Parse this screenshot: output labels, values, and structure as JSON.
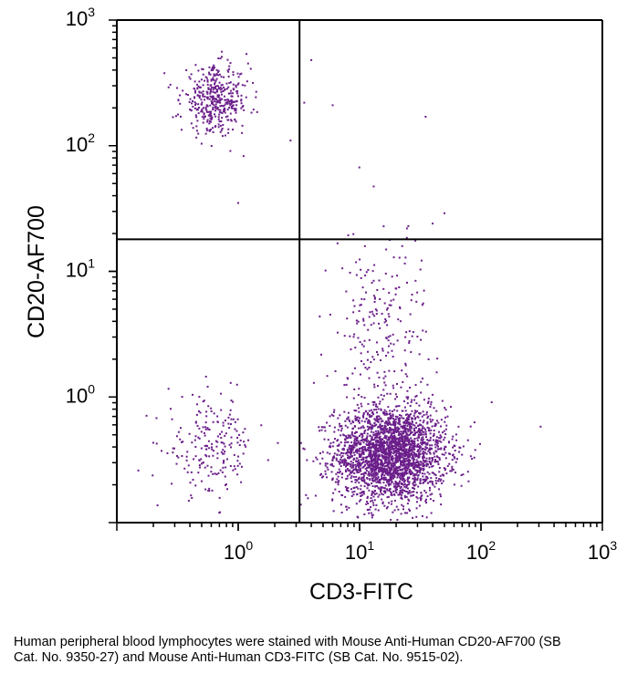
{
  "chart_data": {
    "type": "scatter",
    "xlabel": "CD3-FITC",
    "ylabel": "CD20-AF700",
    "x_scale": "log",
    "y_scale": "log",
    "xlim": [
      0.1,
      1000
    ],
    "ylim": [
      0.1,
      1000
    ],
    "x_ticks": [
      {
        "value": 1,
        "base": "10",
        "exp": "0"
      },
      {
        "value": 10,
        "base": "10",
        "exp": "1"
      },
      {
        "value": 100,
        "base": "10",
        "exp": "2"
      },
      {
        "value": 1000,
        "base": "10",
        "exp": "3"
      }
    ],
    "y_ticks": [
      {
        "value": 1,
        "base": "10",
        "exp": "0"
      },
      {
        "value": 10,
        "base": "10",
        "exp": "1"
      },
      {
        "value": 100,
        "base": "10",
        "exp": "2"
      },
      {
        "value": 1000,
        "base": "10",
        "exp": "3"
      }
    ],
    "quadrant_gates": {
      "x": 3.2,
      "y": 18
    },
    "point_color": "#6b1e8a",
    "populations": [
      {
        "x_center": 18,
        "y_center": 0.35,
        "x_spread": 0.23,
        "y_spread": 0.19,
        "count": 2600
      },
      {
        "x_center": 0.65,
        "y_center": 230,
        "x_spread": 0.14,
        "y_spread": 0.13,
        "count": 420
      },
      {
        "x_center": 0.6,
        "y_center": 0.4,
        "x_spread": 0.18,
        "y_spread": 0.2,
        "count": 210
      },
      {
        "x_center": 15,
        "y_center": 3,
        "x_spread": 0.2,
        "y_spread": 0.45,
        "count": 260
      }
    ],
    "outliers": [
      {
        "x": 3.5,
        "y": 220
      },
      {
        "x": 4,
        "y": 480
      },
      {
        "x": 6,
        "y": 210
      },
      {
        "x": 35,
        "y": 170
      },
      {
        "x": 50,
        "y": 29
      },
      {
        "x": 40,
        "y": 24
      },
      {
        "x": 2.7,
        "y": 110
      },
      {
        "x": 310,
        "y": 0.58
      },
      {
        "x": 1,
        "y": 35
      }
    ]
  },
  "caption": "Human peripheral blood lymphocytes were stained with Mouse Anti-Human CD20-AF700 (SB Cat. No. 9350-27) and Mouse Anti-Human CD3-FITC (SB Cat. No. 9515-02)."
}
